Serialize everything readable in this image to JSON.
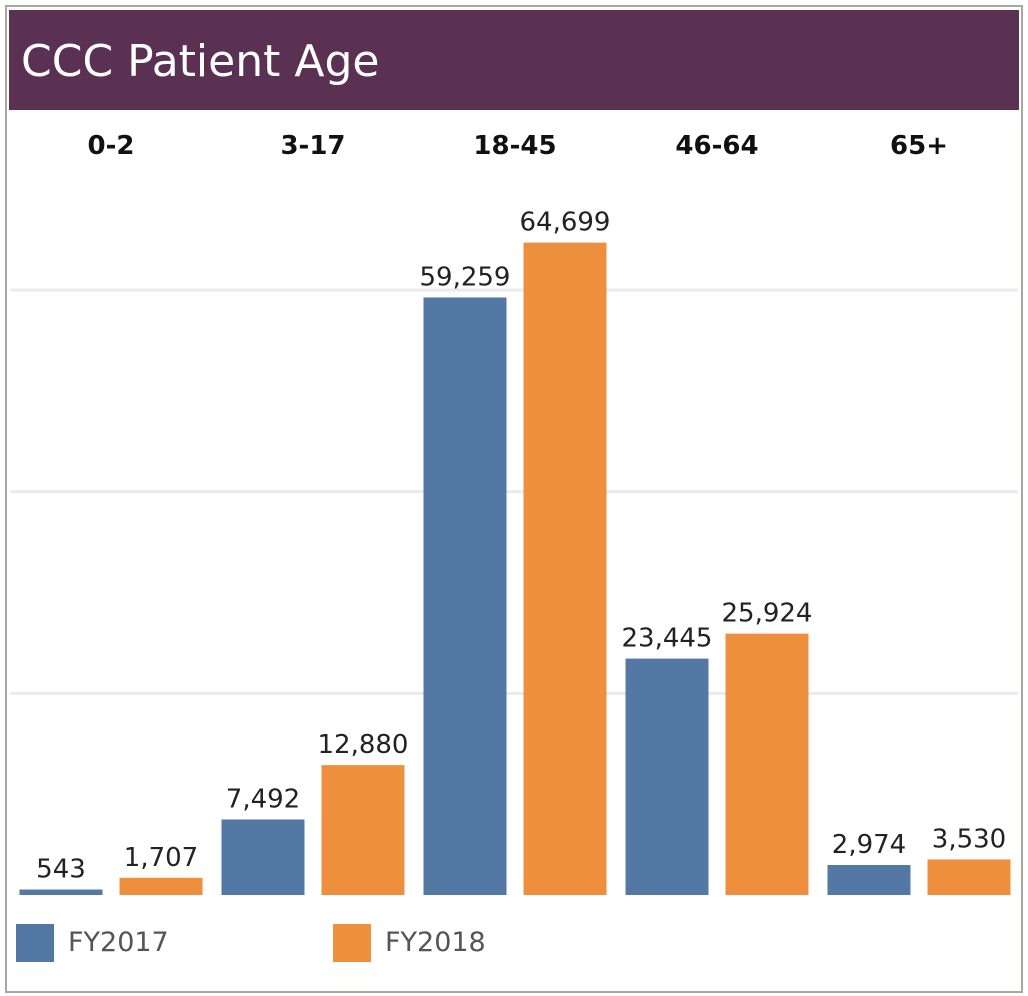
{
  "title": "CCC Patient Age",
  "colors": {
    "title_bg": "#5a3152",
    "fy2017": "#5478a4",
    "fy2018": "#ee8f3e",
    "grid": "#ebebeb"
  },
  "chart_data": {
    "type": "bar",
    "title": "CCC Patient Age",
    "categories": [
      "0-2",
      "3-17",
      "18-45",
      "46-64",
      "65+"
    ],
    "series": [
      {
        "name": "FY2017",
        "values": [
          543,
          7492,
          59259,
          23445,
          2974
        ],
        "labels": [
          "543",
          "7,492",
          "59,259",
          "23,445",
          "2,974"
        ]
      },
      {
        "name": "FY2018",
        "values": [
          1707,
          12880,
          64699,
          25924,
          3530
        ],
        "labels": [
          "1,707",
          "12,880",
          "64,699",
          "25,924",
          "3,530"
        ]
      }
    ],
    "ylim": [
      0,
      75000
    ],
    "gridlines": [
      20000,
      40000,
      60000
    ],
    "grid": true,
    "legend": "bottom-left"
  }
}
